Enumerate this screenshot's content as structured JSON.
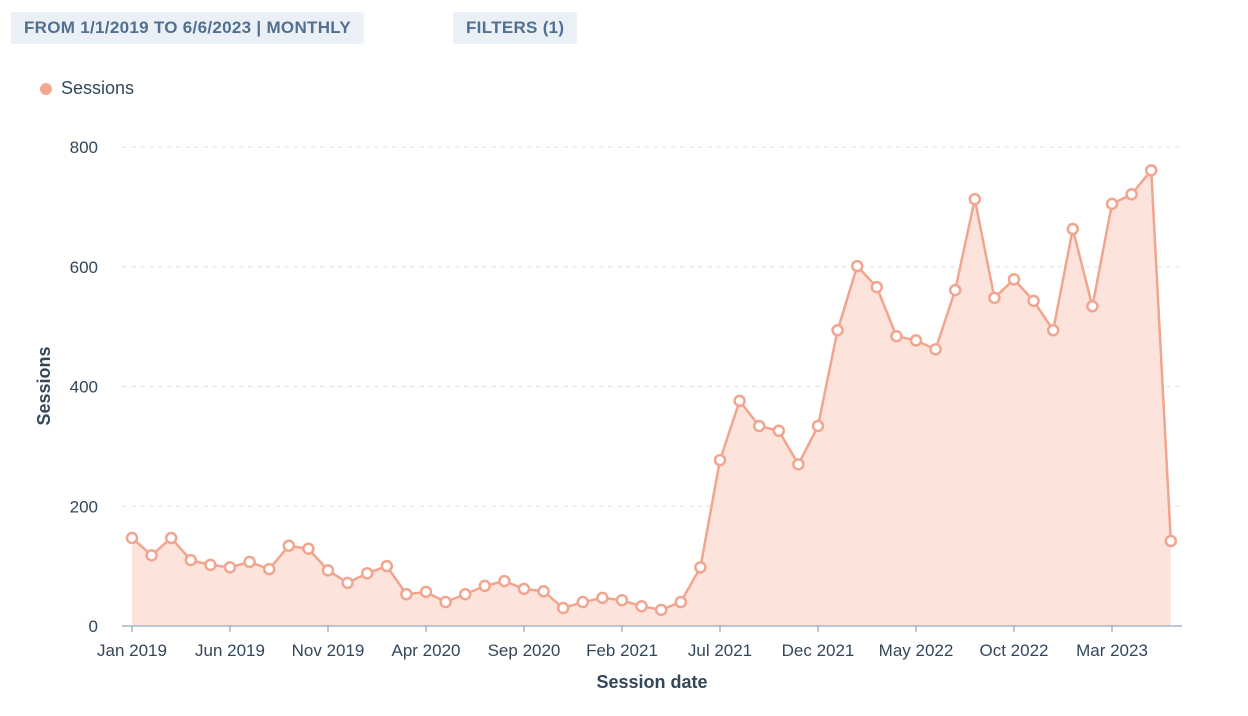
{
  "toolbar": {
    "date_range": "FROM 1/1/2019 TO 6/6/2023 | MONTHLY",
    "filters": "FILTERS (1)"
  },
  "colors": {
    "line": "#f2a58e",
    "fill": "#fce4dd",
    "grid": "#dfe3eb",
    "axis": "#7c98b6"
  },
  "chart_data": {
    "type": "area",
    "title": "",
    "xlabel": "Session date",
    "ylabel": "Sessions",
    "ylim": [
      0,
      800
    ],
    "yticks": [
      0,
      200,
      400,
      600,
      800
    ],
    "xtick_labels": [
      "Jan 2019",
      "Jun 2019",
      "Nov 2019",
      "Apr 2020",
      "Sep 2020",
      "Feb 2021",
      "Jul 2021",
      "Dec 2021",
      "May 2022",
      "Oct 2022",
      "Mar 2023"
    ],
    "xtick_every_months": 5,
    "legend": "top-left",
    "grid": true,
    "series": [
      {
        "name": "Sessions",
        "start": "Jan 2019",
        "interval": "monthly",
        "values": [
          147,
          118,
          147,
          110,
          102,
          98,
          107,
          95,
          134,
          129,
          93,
          72,
          88,
          100,
          53,
          57,
          40,
          53,
          67,
          75,
          62,
          58,
          30,
          40,
          47,
          43,
          33,
          27,
          40,
          98,
          277,
          376,
          334,
          326,
          270,
          334,
          494,
          601,
          566,
          484,
          477,
          462,
          561,
          713,
          548,
          579,
          543,
          494,
          663,
          534,
          705,
          721,
          761,
          142
        ]
      }
    ]
  }
}
